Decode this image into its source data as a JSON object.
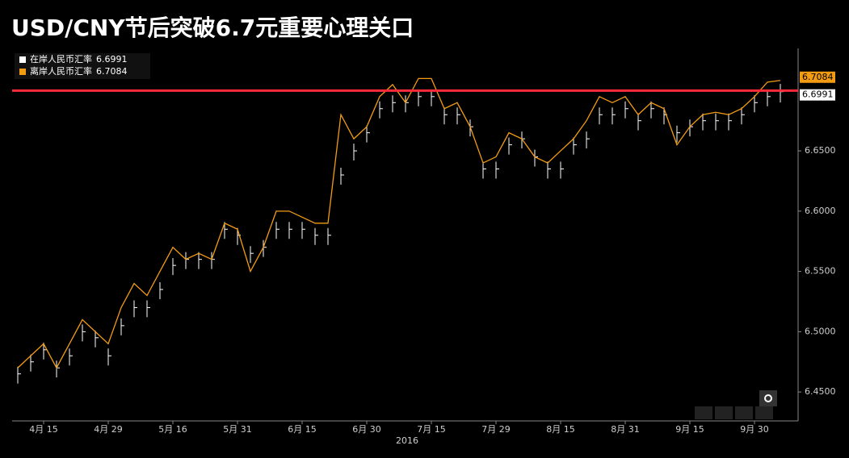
{
  "chart_data": {
    "type": "ohlc_line",
    "title": "USD/CNY节后突破6.7元重要心理关口",
    "x_axis_label": "2016",
    "categories": [
      null,
      null,
      "4月 15",
      null,
      null,
      null,
      null,
      "4月 29",
      null,
      null,
      null,
      null,
      "5月 16",
      null,
      null,
      null,
      null,
      "5月 31",
      null,
      null,
      null,
      null,
      "6月 15",
      null,
      null,
      null,
      null,
      "6月 30",
      null,
      null,
      null,
      null,
      "7月 15",
      null,
      null,
      null,
      null,
      "7月 29",
      null,
      null,
      null,
      null,
      "8月 15",
      null,
      null,
      null,
      null,
      "8月 31",
      null,
      null,
      null,
      null,
      "9月 15",
      null,
      null,
      null,
      null,
      "9月 30",
      null,
      null
    ],
    "series": [
      {
        "name": "在岸人民币汇率",
        "color": "#ffffff",
        "style": "ohlc",
        "values": [
          6.465,
          6.475,
          6.485,
          6.47,
          6.48,
          6.5,
          6.495,
          6.48,
          6.505,
          6.52,
          6.52,
          6.535,
          6.555,
          6.56,
          6.56,
          6.56,
          6.585,
          6.58,
          6.565,
          6.57,
          6.585,
          6.585,
          6.585,
          6.58,
          6.58,
          6.63,
          6.65,
          6.665,
          6.685,
          6.69,
          6.69,
          6.695,
          6.695,
          6.68,
          6.68,
          6.67,
          6.635,
          6.635,
          6.655,
          6.66,
          6.645,
          6.635,
          6.635,
          6.655,
          6.66,
          6.68,
          6.68,
          6.685,
          6.675,
          6.685,
          6.68,
          6.665,
          6.67,
          6.675,
          6.675,
          6.675,
          6.68,
          6.69,
          6.695,
          6.6991
        ],
        "high": [
          6.471,
          6.481,
          6.491,
          6.476,
          6.486,
          6.506,
          6.501,
          6.486,
          6.511,
          6.526,
          6.526,
          6.541,
          6.561,
          6.566,
          6.566,
          6.566,
          6.591,
          6.586,
          6.571,
          6.576,
          6.591,
          6.591,
          6.591,
          6.586,
          6.586,
          6.636,
          6.656,
          6.671,
          6.691,
          6.696,
          6.696,
          6.701,
          6.701,
          6.686,
          6.686,
          6.676,
          6.641,
          6.641,
          6.661,
          6.666,
          6.651,
          6.641,
          6.641,
          6.661,
          6.666,
          6.686,
          6.686,
          6.691,
          6.681,
          6.691,
          6.686,
          6.671,
          6.676,
          6.681,
          6.681,
          6.681,
          6.686,
          6.696,
          6.701,
          6.7055
        ],
        "low": [
          6.457,
          6.467,
          6.477,
          6.462,
          6.472,
          6.492,
          6.487,
          6.472,
          6.497,
          6.512,
          6.512,
          6.527,
          6.547,
          6.552,
          6.552,
          6.552,
          6.577,
          6.572,
          6.557,
          6.562,
          6.577,
          6.577,
          6.577,
          6.572,
          6.572,
          6.622,
          6.642,
          6.657,
          6.677,
          6.682,
          6.682,
          6.687,
          6.687,
          6.672,
          6.672,
          6.662,
          6.627,
          6.627,
          6.647,
          6.652,
          6.637,
          6.627,
          6.627,
          6.647,
          6.652,
          6.672,
          6.672,
          6.677,
          6.667,
          6.677,
          6.672,
          6.657,
          6.662,
          6.667,
          6.667,
          6.667,
          6.672,
          6.682,
          6.687,
          6.6901
        ]
      },
      {
        "name": "离岸人民币汇率",
        "color": "#f39c12",
        "style": "line",
        "values": [
          6.47,
          6.48,
          6.49,
          6.47,
          6.49,
          6.51,
          6.5,
          6.49,
          6.52,
          6.54,
          6.53,
          6.55,
          6.57,
          6.56,
          6.565,
          6.56,
          6.59,
          6.585,
          6.55,
          6.57,
          6.6,
          6.6,
          6.595,
          6.59,
          6.59,
          6.68,
          6.66,
          6.67,
          6.695,
          6.705,
          6.69,
          6.71,
          6.71,
          6.685,
          6.69,
          6.67,
          6.64,
          6.645,
          6.665,
          6.66,
          6.645,
          6.64,
          6.65,
          6.66,
          6.675,
          6.695,
          6.69,
          6.695,
          6.68,
          6.69,
          6.685,
          6.655,
          6.67,
          6.68,
          6.682,
          6.68,
          6.685,
          6.695,
          6.707,
          6.7084
        ]
      }
    ],
    "hline": {
      "value": 6.7,
      "color": "#ff2a3a"
    },
    "ylim": [
      6.426,
      6.735
    ],
    "yticks": [
      {
        "value": 6.45,
        "label": "6.4500"
      },
      {
        "value": 6.5,
        "label": "6.5000"
      },
      {
        "value": 6.55,
        "label": "6.5500"
      },
      {
        "value": 6.6,
        "label": "6.6000"
      },
      {
        "value": 6.65,
        "label": "6.6500"
      }
    ],
    "legend": "top-left"
  }
}
